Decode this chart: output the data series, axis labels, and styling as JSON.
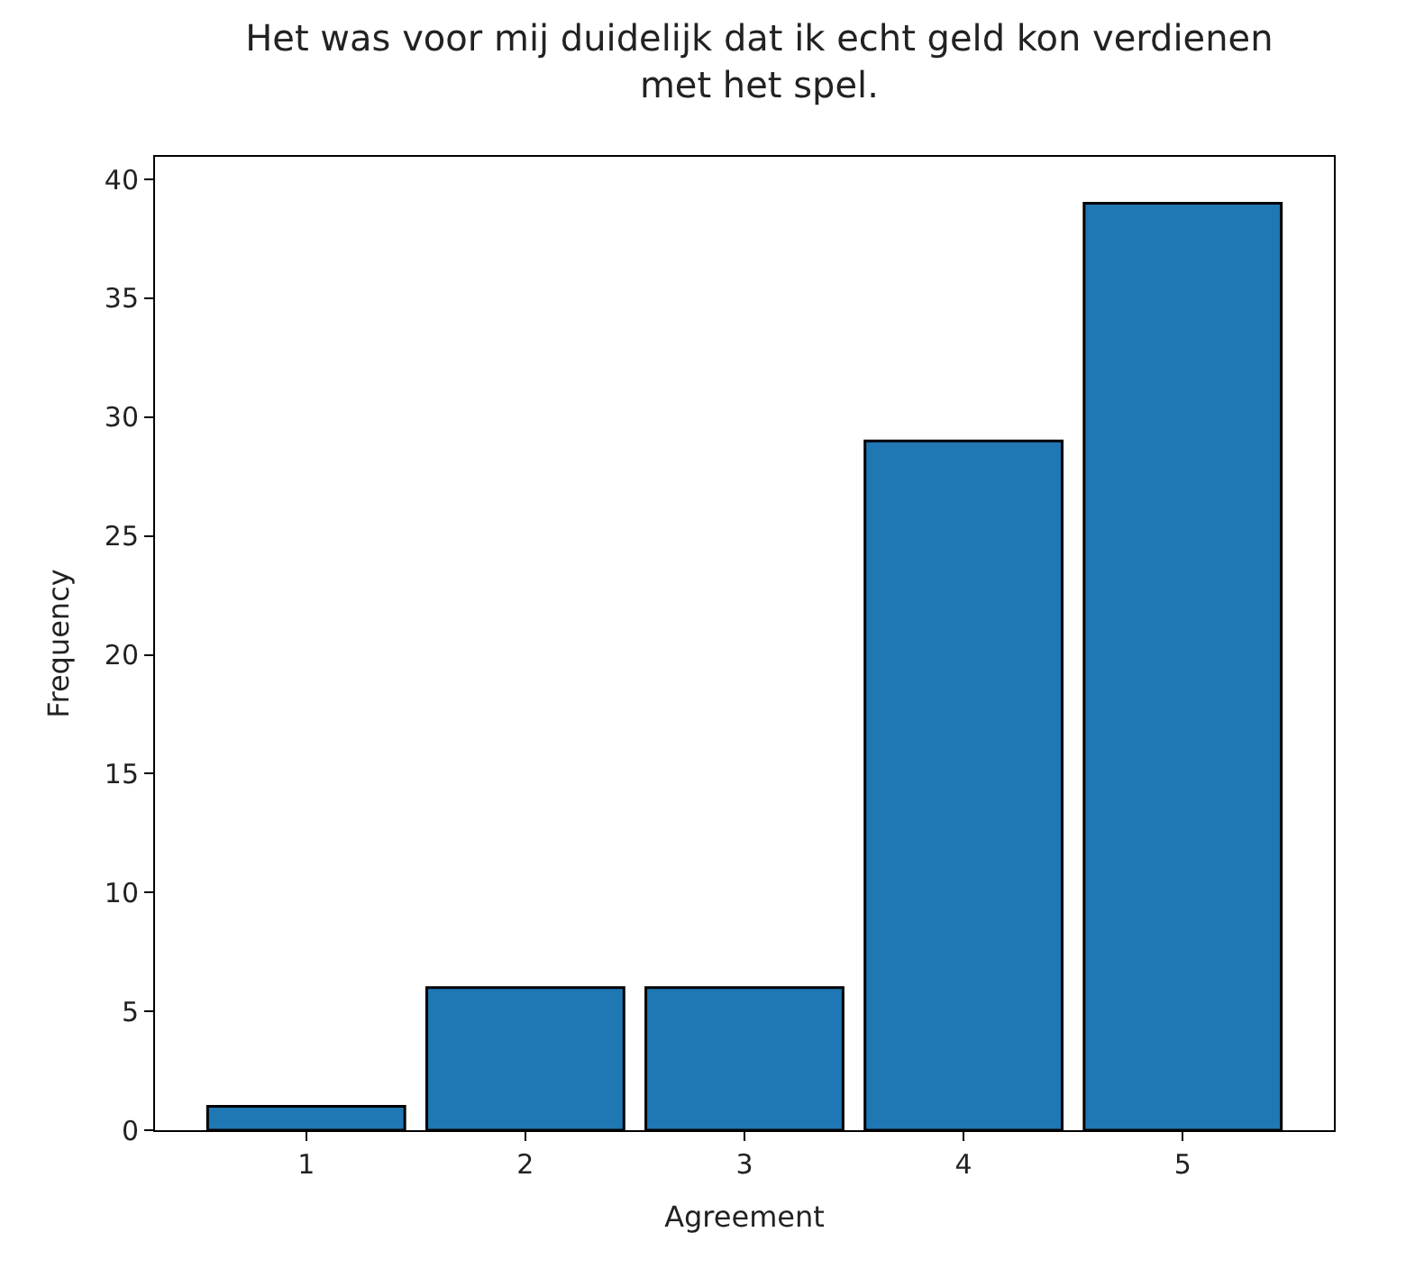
{
  "chart_data": {
    "type": "bar",
    "title": "Het was voor mij duidelijk dat ik echt geld kon verdienen\nmet het spel.",
    "xlabel": "Agreement",
    "ylabel": "Frequency",
    "x": [
      1,
      2,
      3,
      4,
      5
    ],
    "values": [
      1,
      6,
      6,
      29,
      39
    ],
    "color": "#1f77b4",
    "xlim": [
      0.31,
      5.69
    ],
    "xticks": [
      1,
      2,
      3,
      4,
      5
    ],
    "ylim": [
      0,
      40.95
    ],
    "yticks": [
      0,
      5,
      10,
      15,
      20,
      25,
      30,
      35,
      40
    ]
  }
}
